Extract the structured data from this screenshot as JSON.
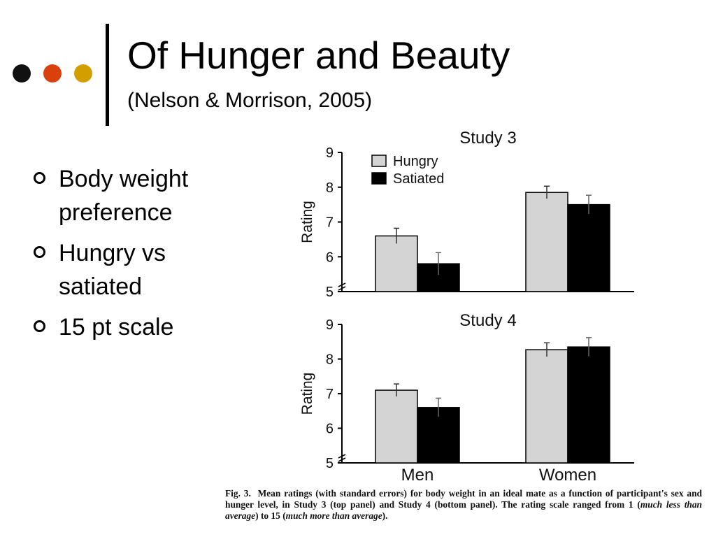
{
  "slide": {
    "title": "Of Hunger and Beauty",
    "subtitle": "(Nelson & Morrison, 2005)",
    "accent_dots": [
      "#111111",
      "#d9400e",
      "#d39e00"
    ],
    "bullets": [
      "Body weight preference",
      "Hungry vs satiated",
      "15 pt scale"
    ]
  },
  "caption": {
    "fig_label": "Fig. 3.",
    "part1": "Mean ratings (with standard errors) for body weight in an ideal mate as a function of participant's sex and hunger level, in Study 3 (top panel) and Study 4 (bottom panel). The rating scale ranged from 1 (",
    "em1": "much less than average",
    "part2": ") to 15 (",
    "em2": "much more than average",
    "part3": ")."
  },
  "chart_data": [
    {
      "type": "bar",
      "title": "Study 3",
      "ylabel": "Rating",
      "ylim": [
        5,
        9
      ],
      "yticks": [
        "5",
        "6",
        "7",
        "8",
        "9"
      ],
      "categories": [
        "Men",
        "Women"
      ],
      "show_category_labels": false,
      "legend": {
        "placement": "top-left",
        "entries": [
          "Hungry",
          "Satiated"
        ]
      },
      "series": [
        {
          "name": "Hungry",
          "color": "#d4d4d4",
          "values": [
            6.6,
            7.85
          ],
          "errors": [
            0.22,
            0.18
          ]
        },
        {
          "name": "Satiated",
          "color": "#000000",
          "values": [
            5.8,
            7.5
          ],
          "errors": [
            0.32,
            0.27
          ]
        }
      ]
    },
    {
      "type": "bar",
      "title": "Study 4",
      "ylabel": "Rating",
      "ylim": [
        5,
        9
      ],
      "yticks": [
        "5",
        "6",
        "7",
        "8",
        "9"
      ],
      "categories": [
        "Men",
        "Women"
      ],
      "show_category_labels": true,
      "series": [
        {
          "name": "Hungry",
          "color": "#d4d4d4",
          "values": [
            7.1,
            8.27
          ],
          "errors": [
            0.18,
            0.2
          ]
        },
        {
          "name": "Satiated",
          "color": "#000000",
          "values": [
            6.6,
            8.35
          ],
          "errors": [
            0.27,
            0.27
          ]
        }
      ]
    }
  ]
}
